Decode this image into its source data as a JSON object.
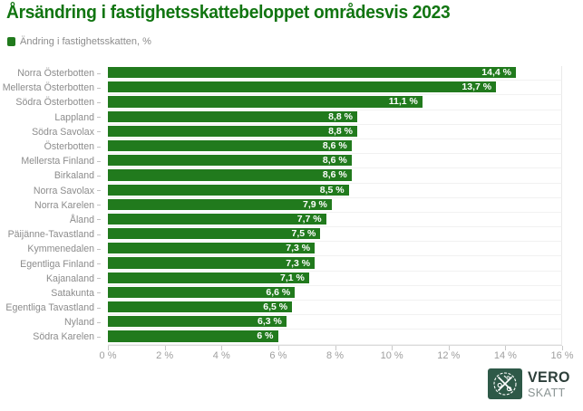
{
  "title": "Årsändring i fastighetsskattebeloppet områdesvis 2023",
  "legend": {
    "label": "Ändring i fastighetsskatten, %"
  },
  "colors": {
    "bar_green": "#217a1d",
    "title_green": "#117511",
    "label_gray": "#8c8c8c",
    "axis_gray": "#9e9e9e",
    "gridline": "#f1f1f1",
    "logo_green": "#2e5948"
  },
  "chart_data": {
    "type": "bar",
    "orientation": "horizontal",
    "title": "Årsändring i fastighetsskattebeloppet områdesvis 2023",
    "series": [
      {
        "name": "Ändring i fastighetsskatten, %",
        "values": [
          14.4,
          13.7,
          11.1,
          8.8,
          8.8,
          8.6,
          8.6,
          8.6,
          8.5,
          7.9,
          7.7,
          7.5,
          7.3,
          7.3,
          7.1,
          6.6,
          6.5,
          6.3,
          6.0
        ]
      }
    ],
    "categories": [
      "Norra Österbotten",
      "Mellersta Österbotten",
      "Södra Österbotten",
      "Lappland",
      "Södra Savolax",
      "Österbotten",
      "Mellersta Finland",
      "Birkaland",
      "Norra Savolax",
      "Norra Karelen",
      "Åland",
      "Päijänne-Tavastland",
      "Kymmenedalen",
      "Egentliga Finland",
      "Kajanaland",
      "Satakunta",
      "Egentliga Tavastland",
      "Nyland",
      "Södra Karelen"
    ],
    "value_labels": [
      "14,4 %",
      "13,7 %",
      "11,1 %",
      "8,8 %",
      "8,8 %",
      "8,6 %",
      "8,6 %",
      "8,6 %",
      "8,5 %",
      "7,9 %",
      "7,7 %",
      "7,5 %",
      "7,3 %",
      "7,3 %",
      "7,1 %",
      "6,6 %",
      "6,5 %",
      "6,3 %",
      "6 %"
    ],
    "x_ticks": [
      "0 %",
      "2 %",
      "4 %",
      "6 %",
      "8 %",
      "10 %",
      "12 %",
      "14 %",
      "16 %"
    ],
    "x_tick_values": [
      0,
      2,
      4,
      6,
      8,
      10,
      12,
      14,
      16
    ],
    "xlim": [
      0,
      16
    ],
    "xlabel": "",
    "ylabel": "",
    "grid": "horizontal row lines, right edge line at 16 %",
    "legend_position": "top-left",
    "value_labels_position": "inside-end, white bold"
  },
  "logo": {
    "line1": "VERO",
    "line2": "SKATT"
  }
}
